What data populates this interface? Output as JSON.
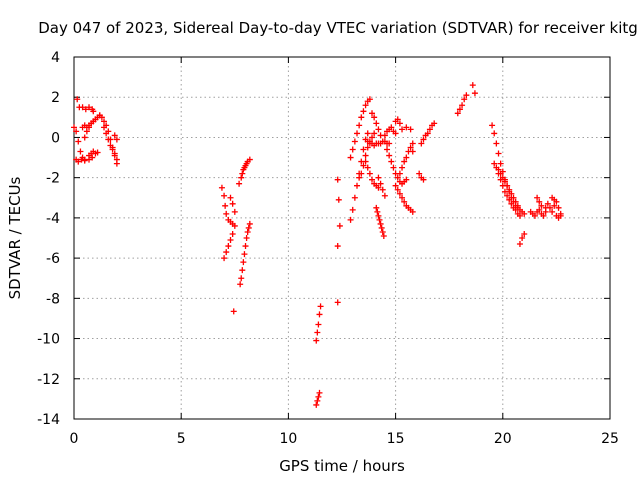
{
  "chart_data": {
    "type": "scatter",
    "title": "Day 047 of 2023, Sidereal Day-to-day VTEC variation (SDTVAR) for receiver kitg",
    "xlabel": "GPS time / hours",
    "ylabel": "SDTVAR / TECUs",
    "xlim": [
      0,
      25
    ],
    "ylim": [
      -14,
      4
    ],
    "xticks": [
      "0",
      "5",
      "10",
      "15",
      "20",
      "25"
    ],
    "yticks": [
      "4",
      "2",
      "0",
      "-2",
      "-4",
      "-6",
      "-8",
      "-10",
      "-12",
      "-14"
    ],
    "grid": true,
    "marker": "+",
    "color": "#ff0000",
    "series": [
      {
        "name": "SDTVAR",
        "segments": [
          {
            "x": [
              0.0,
              0.1,
              0.2,
              0.3,
              0.4,
              0.5
            ],
            "y": [
              0.5,
              0.3,
              -0.2,
              -0.7,
              -1.0,
              -1.1
            ]
          },
          {
            "x": [
              0.1,
              0.2,
              0.35,
              0.5,
              0.7,
              0.85
            ],
            "y": [
              -1.1,
              -1.2,
              -1.1,
              -1.15,
              -1.1,
              -1.0
            ]
          },
          {
            "x": [
              0.15,
              0.25,
              0.4,
              0.55,
              0.7,
              0.85,
              0.9
            ],
            "y": [
              1.9,
              1.5,
              1.5,
              1.4,
              1.5,
              1.4,
              1.3
            ]
          },
          {
            "x": [
              0.4,
              0.5,
              0.6,
              0.7,
              0.8,
              0.9,
              1.0,
              1.1,
              1.2
            ],
            "y": [
              0.5,
              0.6,
              0.5,
              0.6,
              0.7,
              0.8,
              0.9,
              1.0,
              1.1
            ]
          },
          {
            "x": [
              0.5,
              0.6,
              0.7,
              0.8,
              0.9,
              1.0
            ],
            "y": [
              0.0,
              0.3,
              0.5,
              0.7,
              0.8,
              0.9
            ]
          },
          {
            "x": [
              0.7,
              0.8,
              0.9,
              1.0,
              1.1
            ],
            "y": [
              -0.9,
              -0.8,
              -0.7,
              -0.8,
              -0.75
            ]
          },
          {
            "x": [
              1.2,
              1.3,
              1.4,
              1.5,
              1.6,
              1.7,
              1.8,
              1.9,
              2.0
            ],
            "y": [
              1.1,
              1.0,
              0.8,
              0.6,
              0.3,
              -0.1,
              -0.5,
              -0.9,
              -1.3
            ]
          },
          {
            "x": [
              1.4,
              1.5,
              1.6,
              1.7,
              1.8,
              1.9,
              2.0
            ],
            "y": [
              0.5,
              0.2,
              -0.1,
              -0.4,
              -0.6,
              -0.8,
              -1.1
            ]
          },
          {
            "x": [
              1.9,
              2.0
            ],
            "y": [
              0.1,
              -0.1
            ]
          },
          {
            "x": [
              6.9,
              7.0,
              7.05,
              7.1,
              7.2,
              7.3,
              7.4
            ],
            "y": [
              -2.5,
              -2.9,
              -3.4,
              -3.8,
              -4.1,
              -4.2,
              -4.3
            ]
          },
          {
            "x": [
              7.0,
              7.1,
              7.2,
              7.3,
              7.4,
              7.5
            ],
            "y": [
              -6.0,
              -5.7,
              -5.4,
              -5.1,
              -4.8,
              -4.4
            ]
          },
          {
            "x": [
              7.3,
              7.4,
              7.5
            ],
            "y": [
              -3.0,
              -3.3,
              -3.7
            ]
          },
          {
            "x": [
              7.45
            ],
            "y": [
              -8.65
            ]
          },
          {
            "x": [
              7.7,
              7.8,
              7.85,
              7.9,
              7.95,
              8.0,
              8.05,
              8.1,
              8.2
            ],
            "y": [
              -2.3,
              -2.0,
              -1.8,
              -1.6,
              -1.5,
              -1.4,
              -1.3,
              -1.2,
              -1.1
            ]
          },
          {
            "x": [
              7.75,
              7.8,
              7.85,
              7.9,
              7.95,
              8.0,
              8.05,
              8.1,
              8.15,
              8.2
            ],
            "y": [
              -7.3,
              -7.0,
              -6.6,
              -6.2,
              -5.8,
              -5.4,
              -5.0,
              -4.7,
              -4.5,
              -4.3
            ]
          },
          {
            "x": [
              11.3,
              11.35,
              11.4,
              11.45,
              11.5
            ],
            "y": [
              -10.1,
              -9.7,
              -9.3,
              -8.8,
              -8.4
            ]
          },
          {
            "x": [
              11.3,
              11.35,
              11.4,
              11.45
            ],
            "y": [
              -13.3,
              -13.1,
              -12.9,
              -12.7
            ]
          },
          {
            "x": [
              12.3,
              12.35,
              12.4
            ],
            "y": [
              -2.1,
              -3.1,
              -4.4
            ]
          },
          {
            "x": [
              12.3
            ],
            "y": [
              -5.4
            ]
          },
          {
            "x": [
              12.3
            ],
            "y": [
              -8.2
            ]
          },
          {
            "x": [
              12.9,
              13.0,
              13.1,
              13.2,
              13.3,
              13.4,
              13.5,
              13.6,
              13.7
            ],
            "y": [
              -4.1,
              -3.6,
              -3.0,
              -2.4,
              -1.8,
              -1.2,
              -0.6,
              -0.1,
              0.2
            ]
          },
          {
            "x": [
              12.9,
              13.0,
              13.1,
              13.2,
              13.3,
              13.4,
              13.5,
              13.6,
              13.7,
              13.8
            ],
            "y": [
              -1.0,
              -0.6,
              -0.2,
              0.2,
              0.6,
              1.0,
              1.3,
              1.6,
              1.8,
              1.9
            ]
          },
          {
            "x": [
              13.3,
              13.4,
              13.5,
              13.6,
              13.7,
              13.8,
              13.9,
              14.0
            ],
            "y": [
              -2.0,
              -1.8,
              -1.4,
              -0.9,
              -0.5,
              -0.2,
              0.0,
              0.2
            ]
          },
          {
            "x": [
              13.6,
              13.7,
              13.8,
              13.9,
              14.0,
              14.1,
              14.2
            ],
            "y": [
              -1.2,
              -1.5,
              -1.8,
              -2.1,
              -2.3,
              -2.4,
              -2.5
            ]
          },
          {
            "x": [
              13.7,
              13.8,
              13.9,
              14.0,
              14.1,
              14.2,
              14.3,
              14.4,
              14.5,
              14.6,
              14.7
            ],
            "y": [
              -0.2,
              -0.3,
              -0.3,
              -0.4,
              -0.3,
              -0.3,
              -0.3,
              -0.2,
              -0.2,
              -0.3,
              -0.3
            ]
          },
          {
            "x": [
              13.9,
              14.0,
              14.1,
              14.2,
              14.3
            ],
            "y": [
              1.2,
              1.0,
              0.7,
              0.4,
              0.1
            ]
          },
          {
            "x": [
              14.1,
              14.15,
              14.2,
              14.25,
              14.3,
              14.35,
              14.4,
              14.45
            ],
            "y": [
              -3.5,
              -3.7,
              -3.9,
              -4.1,
              -4.3,
              -4.5,
              -4.7,
              -4.9
            ]
          },
          {
            "x": [
              14.2,
              14.3,
              14.4,
              14.5
            ],
            "y": [
              -2.0,
              -2.3,
              -2.6,
              -2.9
            ]
          },
          {
            "x": [
              14.5,
              14.6,
              14.7,
              14.8,
              14.9,
              15.0
            ],
            "y": [
              0.1,
              0.3,
              0.4,
              0.5,
              0.3,
              0.2
            ]
          },
          {
            "x": [
              14.6,
              14.7,
              14.8,
              14.9,
              15.0,
              15.1,
              15.2,
              15.3,
              15.4,
              15.5
            ],
            "y": [
              -0.6,
              -0.9,
              -1.2,
              -1.5,
              -1.8,
              -2.0,
              -2.2,
              -2.3,
              -2.2,
              -2.1
            ]
          },
          {
            "x": [
              15.0,
              15.1,
              15.2,
              15.3,
              15.4,
              15.5,
              15.6,
              15.7,
              15.8
            ],
            "y": [
              -2.4,
              -2.6,
              -2.8,
              -3.0,
              -3.2,
              -3.4,
              -3.5,
              -3.6,
              -3.7
            ]
          },
          {
            "x": [
              15.0,
              15.1,
              15.2
            ],
            "y": [
              0.8,
              0.9,
              0.7
            ]
          },
          {
            "x": [
              15.2,
              15.3,
              15.4,
              15.5,
              15.6,
              15.7,
              15.8
            ],
            "y": [
              -1.8,
              -1.5,
              -1.2,
              -1.0,
              -0.7,
              -0.5,
              -0.3
            ]
          },
          {
            "x": [
              15.3,
              15.5,
              15.7
            ],
            "y": [
              0.4,
              0.5,
              0.4
            ]
          },
          {
            "x": [
              15.8
            ],
            "y": [
              -0.7
            ]
          },
          {
            "x": [
              16.1,
              16.2,
              16.3
            ],
            "y": [
              -1.8,
              -2.0,
              -2.1
            ]
          },
          {
            "x": [
              16.2,
              16.3,
              16.4,
              16.5,
              16.6,
              16.7,
              16.8
            ],
            "y": [
              -0.3,
              -0.1,
              0.1,
              0.2,
              0.4,
              0.6,
              0.7
            ]
          },
          {
            "x": [
              17.9,
              18.0,
              18.1,
              18.2,
              18.3
            ],
            "y": [
              1.2,
              1.4,
              1.6,
              1.9,
              2.1
            ]
          },
          {
            "x": [
              18.6,
              18.7
            ],
            "y": [
              2.6,
              2.2
            ]
          },
          {
            "x": [
              19.5,
              19.6,
              19.7,
              19.8,
              19.9,
              20.0,
              20.1,
              20.2,
              20.3,
              20.4,
              20.5,
              20.6,
              20.7,
              20.8,
              20.9,
              21.0
            ],
            "y": [
              0.6,
              0.2,
              -0.3,
              -0.8,
              -1.3,
              -1.7,
              -2.1,
              -2.4,
              -2.7,
              -3.0,
              -3.2,
              -3.4,
              -3.5,
              -3.6,
              -3.7,
              -3.8
            ]
          },
          {
            "x": [
              19.6,
              19.7,
              19.8,
              19.9,
              20.0,
              20.1,
              20.2,
              20.3,
              20.4,
              20.5,
              20.6,
              20.7,
              20.8
            ],
            "y": [
              -1.3,
              -1.5,
              -1.8,
              -2.1,
              -2.4,
              -2.7,
              -2.9,
              -3.1,
              -3.3,
              -3.5,
              -3.6,
              -3.8,
              -3.9
            ]
          },
          {
            "x": [
              19.8,
              19.9,
              20.0,
              20.1,
              20.2,
              20.3,
              20.4,
              20.5,
              20.6,
              20.7
            ],
            "y": [
              -1.6,
              -1.8,
              -2.0,
              -2.2,
              -2.4,
              -2.6,
              -2.8,
              -3.0,
              -3.2,
              -3.4
            ]
          },
          {
            "x": [
              20.8,
              20.9,
              21.0
            ],
            "y": [
              -5.3,
              -5.0,
              -4.8
            ]
          },
          {
            "x": [
              21.3,
              21.4,
              21.5,
              21.6,
              21.7,
              21.8,
              21.9,
              22.0
            ],
            "y": [
              -3.7,
              -3.8,
              -3.9,
              -3.7,
              -3.6,
              -3.8,
              -3.9,
              -3.7
            ]
          },
          {
            "x": [
              21.6,
              21.7,
              21.8
            ],
            "y": [
              -3.0,
              -3.2,
              -3.4
            ]
          },
          {
            "x": [
              22.0,
              22.1,
              22.2,
              22.3,
              22.4,
              22.5,
              22.6,
              22.7
            ],
            "y": [
              -3.5,
              -3.3,
              -3.5,
              -3.7,
              -3.4,
              -3.2,
              -3.5,
              -3.8
            ]
          },
          {
            "x": [
              22.3,
              22.4,
              22.5,
              22.6,
              22.7
            ],
            "y": [
              -3.0,
              -3.1,
              -3.9,
              -4.0,
              -3.9
            ]
          }
        ]
      }
    ]
  }
}
